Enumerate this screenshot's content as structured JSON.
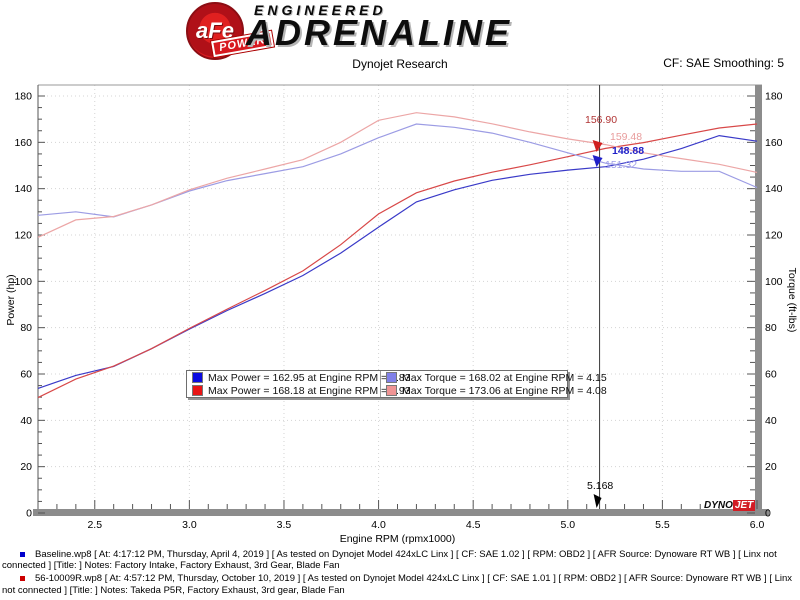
{
  "header": {
    "brand": {
      "circle_text": "aFe",
      "power_label": "POWER",
      "line1": "ENGINEERED",
      "line2": "ADRENALINE"
    },
    "subtitle": "Dynojet Research",
    "cf_label": "CF: SAE Smoothing: 5"
  },
  "chart_data": {
    "type": "line",
    "title": "Dynojet Research",
    "xlabel": "Engine RPM (rpmx1000)",
    "ylabel_left": "Power (hp)",
    "ylabel_right": "Torque (ft-lbs)",
    "x_range": [
      2.2,
      6.0
    ],
    "y_range": [
      0,
      185
    ],
    "x_major_ticks": [
      2.5,
      3.0,
      3.5,
      4.0,
      4.5,
      5.0,
      5.5,
      6.0
    ],
    "x_minor_step": 0.1,
    "y_major_ticks": [
      0,
      20,
      40,
      60,
      80,
      100,
      120,
      140,
      160,
      180
    ],
    "y_minor_step": 5,
    "grid": "dashed",
    "legend_position": "bottom-center-inside",
    "x_shared": [
      2.2,
      2.4,
      2.6,
      2.8,
      3.0,
      3.2,
      3.4,
      3.6,
      3.8,
      4.0,
      4.2,
      4.4,
      4.6,
      4.8,
      5.0,
      5.2,
      5.4,
      5.6,
      5.8,
      6.0
    ],
    "series": [
      {
        "name": "Baseline Power (hp)",
        "color": "#3a3ac8",
        "values": [
          53.8,
          59.4,
          63.3,
          70.9,
          79.4,
          87.4,
          94.8,
          102.5,
          112.2,
          123.4,
          134.3,
          139.5,
          143.6,
          146.2,
          148.0,
          149.5,
          152.7,
          157.3,
          162.9,
          160.5
        ]
      },
      {
        "name": "56-10009R Power (hp)",
        "color": "#d84848",
        "values": [
          49.8,
          57.8,
          63.4,
          70.9,
          79.7,
          88.0,
          96.1,
          104.5,
          115.8,
          129.1,
          138.2,
          143.3,
          147.1,
          150.3,
          153.8,
          157.4,
          159.9,
          163.1,
          166.2,
          167.9
        ]
      },
      {
        "name": "Baseline Torque (ft-lbs)",
        "color": "#9c9ce4",
        "values": [
          128.5,
          130.0,
          127.8,
          133.0,
          139.0,
          143.5,
          146.5,
          149.5,
          155.0,
          162.0,
          167.9,
          166.5,
          164.0,
          160.0,
          155.5,
          151.0,
          148.5,
          147.5,
          147.5,
          140.5
        ]
      },
      {
        "name": "56-10009R Torque (ft-lbs)",
        "color": "#eca6a6",
        "values": [
          119.0,
          126.5,
          128.0,
          133.0,
          139.5,
          144.5,
          148.5,
          152.5,
          160.0,
          169.5,
          172.8,
          171.0,
          168.0,
          164.5,
          161.5,
          159.0,
          155.5,
          153.0,
          150.5,
          147.0
        ]
      }
    ],
    "cursor_rpm": 5.168
  },
  "legend": {
    "items": [
      {
        "swatch": "#0a0ae0",
        "text": "Max Power = 162.95 at Engine RPM = 5.83"
      },
      {
        "swatch": "#8080e8",
        "text": "Max Torque = 168.02 at Engine RPM = 4.15"
      },
      {
        "swatch": "#e81414",
        "text": "Max Power = 168.18 at Engine RPM = 5.93"
      },
      {
        "swatch": "#f09494",
        "text": "Max Torque = 173.06 at Engine RPM = 4.08"
      }
    ]
  },
  "cursor": {
    "x_label": "5.168",
    "readouts": [
      {
        "text": "156.90",
        "color": "#b03434"
      },
      {
        "text": "159.48",
        "color": "#e89c9c"
      },
      {
        "text": "148.88",
        "color": "#2020c8"
      },
      {
        "text": "151.32",
        "color": "#9c9ce8"
      }
    ]
  },
  "watermark": {
    "dyno": "DYNO",
    "jet": "JET"
  },
  "footer": {
    "runs": [
      {
        "bullet_color": "#0000cc",
        "text": "Baseline.wp8 [ At: 4:17:12 PM, Thursday, April 4, 2019 ] [ As tested on Dynojet Model 424xLC Linx ] [ CF: SAE 1.02 ] [ RPM: OBD2 ] [ AFR Source: Dynoware RT WB ] [ Linx not connected ] [Title: ]  Notes: Factory Intake, Factory Exhaust, 3rd Gear, Blade Fan"
      },
      {
        "bullet_color": "#cc0000",
        "text": "56-10009R.wp8 [ At: 4:57:12 PM, Thursday, October 10, 2019 ] [ As tested on Dynojet Model 424xLC Linx ] [ CF: SAE 1.01 ] [ RPM: OBD2 ] [ AFR Source: Dynoware RT WB ] [ Linx not connected ] [Title: ]  Notes: Takeda P5R, Factory Exhaust, 3rd gear, Blade Fan"
      }
    ]
  }
}
